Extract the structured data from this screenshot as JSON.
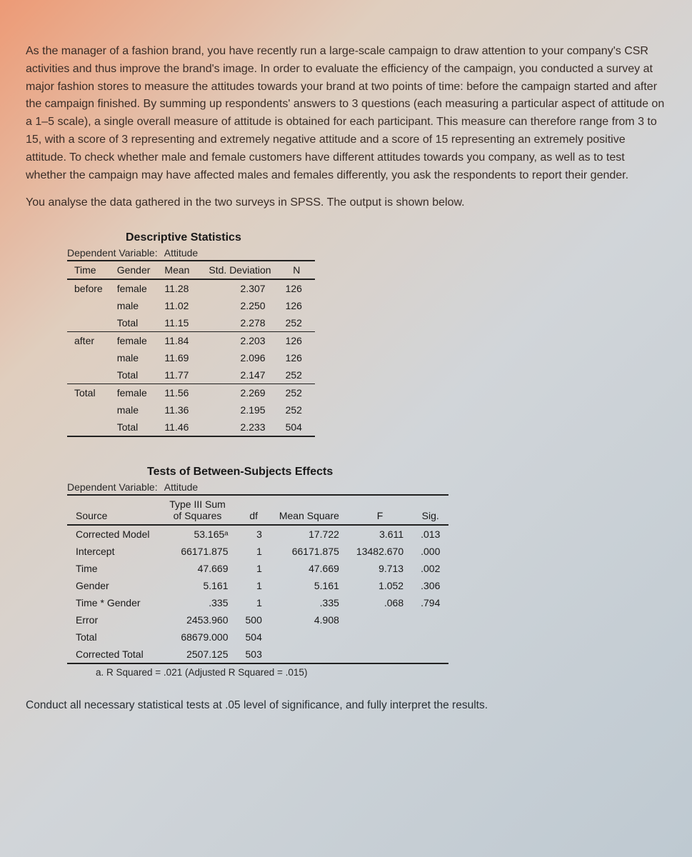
{
  "paragraph1": "As the manager of a fashion brand, you have recently run a large-scale campaign to draw attention to your company's CSR activities and thus improve the brand's image. In order to evaluate the efficiency of the campaign, you conducted a survey at major fashion stores to measure the attitudes towards your brand at two points of time: before the campaign started and after the campaign finished. By summing up respondents' answers to 3 questions (each measuring a particular aspect of attitude on a 1–5 scale), a single overall measure of attitude is obtained for each participant. This measure can therefore range from 3 to 15, with a score of 3 representing and extremely negative attitude and a score of 15 representing an extremely positive attitude. To check whether male and female customers have different attitudes towards you company, as well as to test whether the campaign may have affected males and females differently, you ask the respondents to report their gender.",
  "paragraph2": "You analyse the data gathered in the two surveys in SPSS. The output is shown below.",
  "desc": {
    "title": "Descriptive Statistics",
    "depvar_label": "Dependent Variable:",
    "depvar_value": "Attitude",
    "headers": {
      "time": "Time",
      "gender": "Gender",
      "mean": "Mean",
      "sd": "Std. Deviation",
      "n": "N"
    },
    "rows": [
      {
        "time": "before",
        "gender": "female",
        "mean": "11.28",
        "sd": "2.307",
        "n": "126"
      },
      {
        "time": "",
        "gender": "male",
        "mean": "11.02",
        "sd": "2.250",
        "n": "126"
      },
      {
        "time": "",
        "gender": "Total",
        "mean": "11.15",
        "sd": "2.278",
        "n": "252"
      },
      {
        "time": "after",
        "gender": "female",
        "mean": "11.84",
        "sd": "2.203",
        "n": "126"
      },
      {
        "time": "",
        "gender": "male",
        "mean": "11.69",
        "sd": "2.096",
        "n": "126"
      },
      {
        "time": "",
        "gender": "Total",
        "mean": "11.77",
        "sd": "2.147",
        "n": "252"
      },
      {
        "time": "Total",
        "gender": "female",
        "mean": "11.56",
        "sd": "2.269",
        "n": "252"
      },
      {
        "time": "",
        "gender": "male",
        "mean": "11.36",
        "sd": "2.195",
        "n": "252"
      },
      {
        "time": "",
        "gender": "Total",
        "mean": "11.46",
        "sd": "2.233",
        "n": "504"
      }
    ]
  },
  "anova": {
    "title": "Tests of Between-Subjects Effects",
    "depvar_label": "Dependent Variable:",
    "depvar_value": "Attitude",
    "headers": {
      "source": "Source",
      "ss": "Type III Sum of Squares",
      "df": "df",
      "ms": "Mean Square",
      "f": "F",
      "sig": "Sig."
    },
    "rows": [
      {
        "source": "Corrected Model",
        "ss": "53.165ᵃ",
        "df": "3",
        "ms": "17.722",
        "f": "3.611",
        "sig": ".013"
      },
      {
        "source": "Intercept",
        "ss": "66171.875",
        "df": "1",
        "ms": "66171.875",
        "f": "13482.670",
        "sig": ".000"
      },
      {
        "source": "Time",
        "ss": "47.669",
        "df": "1",
        "ms": "47.669",
        "f": "9.713",
        "sig": ".002"
      },
      {
        "source": "Gender",
        "ss": "5.161",
        "df": "1",
        "ms": "5.161",
        "f": "1.052",
        "sig": ".306"
      },
      {
        "source": "Time * Gender",
        "ss": ".335",
        "df": "1",
        "ms": ".335",
        "f": ".068",
        "sig": ".794"
      },
      {
        "source": "Error",
        "ss": "2453.960",
        "df": "500",
        "ms": "4.908",
        "f": "",
        "sig": ""
      },
      {
        "source": "Total",
        "ss": "68679.000",
        "df": "504",
        "ms": "",
        "f": "",
        "sig": ""
      },
      {
        "source": "Corrected Total",
        "ss": "2507.125",
        "df": "503",
        "ms": "",
        "f": "",
        "sig": ""
      }
    ],
    "footnote": "a. R Squared = .021 (Adjusted R Squared = .015)"
  },
  "closing": "Conduct all necessary statistical tests at .05 level of significance, and fully interpret the results."
}
